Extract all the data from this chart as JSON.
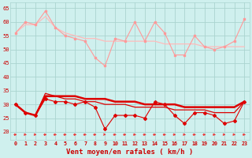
{
  "x": [
    0,
    1,
    2,
    3,
    4,
    5,
    6,
    7,
    8,
    9,
    10,
    11,
    12,
    13,
    14,
    15,
    16,
    17,
    18,
    19,
    20,
    21,
    22,
    23
  ],
  "rafales_jagged": [
    56,
    60,
    59,
    64,
    58,
    55,
    54,
    53,
    47,
    44,
    54,
    53,
    60,
    53,
    60,
    56,
    48,
    48,
    55,
    51,
    50,
    51,
    53,
    61
  ],
  "rafales_smooth": [
    56,
    59,
    59,
    62,
    58,
    56,
    55,
    54,
    54,
    53,
    53,
    53,
    53,
    53,
    53,
    52,
    52,
    52,
    52,
    51,
    51,
    51,
    51,
    51
  ],
  "moyen_jagged": [
    30,
    27,
    26,
    32,
    31,
    31,
    30,
    31,
    29,
    21,
    26,
    26,
    26,
    25,
    31,
    30,
    26,
    23,
    27,
    27,
    26,
    23,
    24,
    31
  ],
  "moyen_smooth": [
    30,
    27,
    26,
    34,
    33,
    32,
    32,
    31,
    31,
    30,
    30,
    30,
    29,
    29,
    29,
    29,
    28,
    28,
    28,
    28,
    27,
    27,
    27,
    31
  ],
  "moyen_trend": [
    30,
    27,
    26,
    33,
    33,
    33,
    33,
    32,
    32,
    32,
    31,
    31,
    31,
    30,
    30,
    30,
    30,
    29,
    29,
    29,
    29,
    29,
    29,
    31
  ],
  "xlabel": "Vent moyen/en rafales ( km/h )",
  "ylim": [
    17,
    67
  ],
  "yticks": [
    20,
    25,
    30,
    35,
    40,
    45,
    50,
    55,
    60,
    65
  ],
  "bg_color": "#cff0ee",
  "grid_color": "#aad4d0",
  "rafales_jagged_color": "#ff9999",
  "rafales_smooth_color": "#ffbbbb",
  "moyen_color": "#dd0000",
  "arrow_color": "#ee3333",
  "xlabel_color": "#cc0000",
  "tick_color": "#cc0000"
}
